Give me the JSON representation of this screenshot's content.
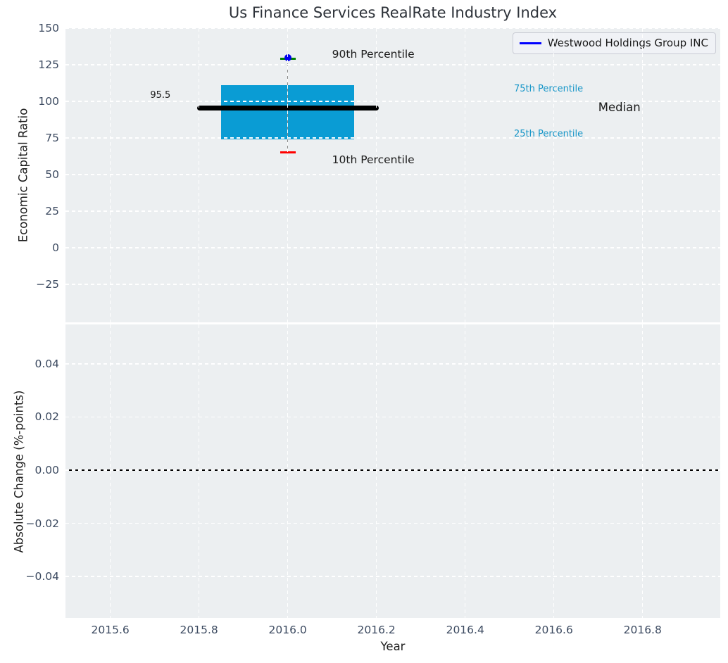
{
  "colors": {
    "box": "#0a9cd4",
    "median": "#000000",
    "whisker": "#8a8a8a",
    "cap_top": "#008000",
    "cap_bottom": "#ff0000",
    "marker": "#0000ee",
    "legend_line": "#0000ff",
    "percentile_label": "#1796c8",
    "axes_bg": "#eceff1",
    "grid": "#ffffff",
    "tick_label": "#3d4b61",
    "zero_line": "#000000"
  },
  "legend": {
    "label": "Westwood Holdings Group INC"
  },
  "chart_data": [
    {
      "type": "boxplot",
      "title": "Us Finance Services RealRate Industry Index",
      "ylabel": "Economic Capital Ratio",
      "xlim": [
        2015.499,
        2016.975
      ],
      "ylim": [
        -51,
        150
      ],
      "ytick_vals": [
        150,
        125,
        100,
        75,
        50,
        25,
        0,
        -25
      ],
      "ytick_labels": [
        "150",
        "125",
        "100",
        "75",
        "50",
        "25",
        "0",
        "−25"
      ],
      "xtick_vals": [
        2015.6,
        2015.8,
        2016.0,
        2016.2,
        2016.4,
        2016.6,
        2016.8
      ],
      "grid": true,
      "legend_position": "upper right",
      "box": {
        "year": 2016,
        "x_left": 2015.85,
        "x_right": 2016.15,
        "whisker_x": 2016.0,
        "p10": 65,
        "q1": 74,
        "median": 95.5,
        "q3": 111,
        "p90": 129,
        "median_x_left": 2015.8,
        "median_x_right": 2016.2
      },
      "company_marker": {
        "x": 2016.0,
        "y": 129.8
      },
      "annotations": [
        {
          "text": "90th Percentile",
          "x": 2016.1,
          "y": 132,
          "color": "#1a1a1a",
          "size": 15.5
        },
        {
          "text": "10th Percentile",
          "x": 2016.1,
          "y": 60,
          "color": "#1a1a1a",
          "size": 15.5
        },
        {
          "text": "75th Percentile",
          "x": 2016.51,
          "y": 108,
          "color": "#1796c8",
          "size": 13
        },
        {
          "text": "25th Percentile",
          "x": 2016.51,
          "y": 77.5,
          "color": "#1796c8",
          "size": 13
        },
        {
          "text": "Median",
          "x": 2016.7,
          "y": 95.5,
          "color": "#1a1a1a",
          "size": 16.5
        },
        {
          "text": "95.5",
          "x": 2015.69,
          "y": 104,
          "color": "#1a1a1a",
          "size": 13
        }
      ]
    },
    {
      "type": "line",
      "ylabel": "Absolute Change (%-points)",
      "xlabel": "Year",
      "xlim": [
        2015.499,
        2016.975
      ],
      "ylim": [
        -0.0556,
        0.0548
      ],
      "ytick_vals": [
        0.04,
        0.02,
        0,
        -0.02,
        -0.04
      ],
      "ytick_labels": [
        "0.04",
        "0.02",
        "0.00",
        "−0.02",
        "−0.04"
      ],
      "xtick_vals": [
        2015.6,
        2015.8,
        2016.0,
        2016.2,
        2016.4,
        2016.6,
        2016.8
      ],
      "xtick_labels": [
        "2015.6",
        "2015.8",
        "2016.0",
        "2016.2",
        "2016.4",
        "2016.6",
        "2016.8"
      ],
      "grid": true,
      "zero_line": 0,
      "series": []
    }
  ]
}
